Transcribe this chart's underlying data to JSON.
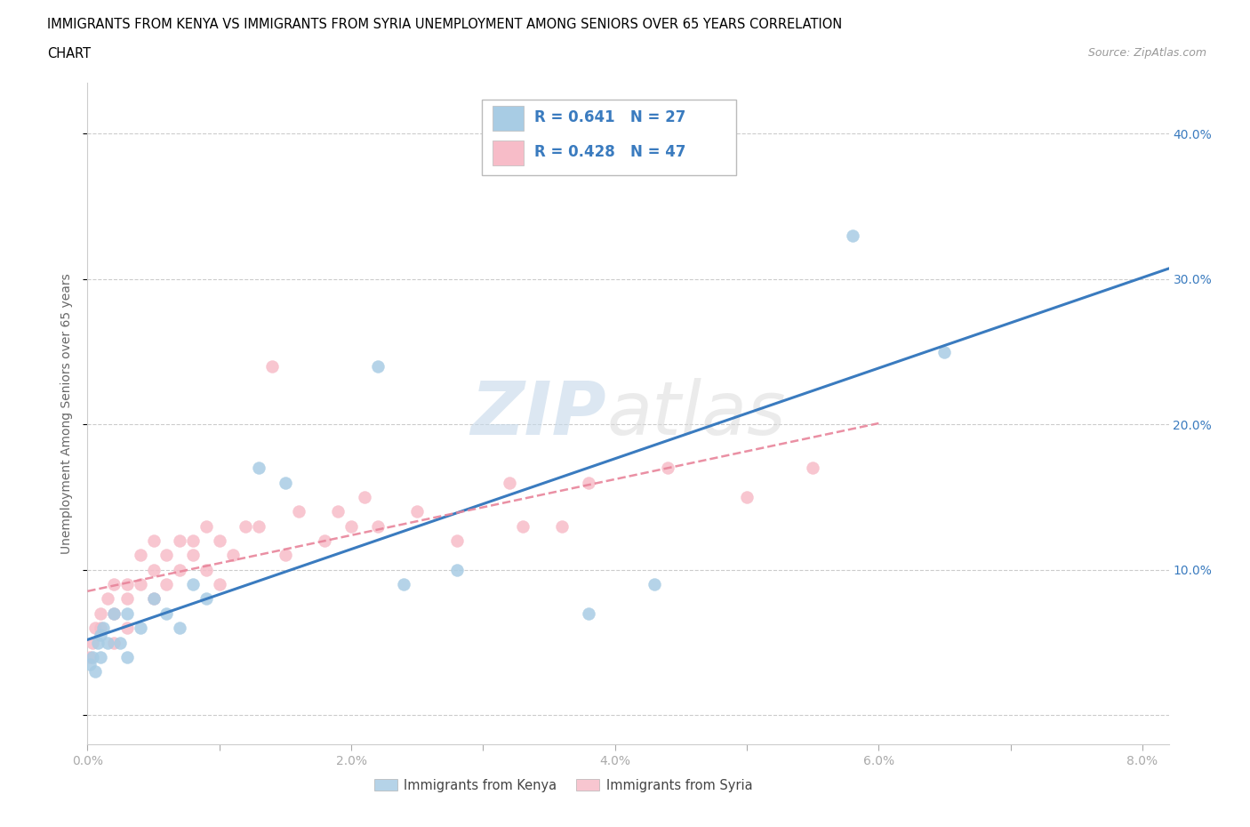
{
  "title_line1": "IMMIGRANTS FROM KENYA VS IMMIGRANTS FROM SYRIA UNEMPLOYMENT AMONG SENIORS OVER 65 YEARS CORRELATION",
  "title_line2": "CHART",
  "source_text": "Source: ZipAtlas.com",
  "ylabel": "Unemployment Among Seniors over 65 years",
  "legend_kenya": "Immigrants from Kenya",
  "legend_syria": "Immigrants from Syria",
  "kenya_R": 0.641,
  "kenya_N": 27,
  "syria_R": 0.428,
  "syria_N": 47,
  "kenya_scatter_color": "#a8cce4",
  "syria_scatter_color": "#f7bcc8",
  "kenya_line_color": "#3a7bbf",
  "syria_line_color": "#e8849a",
  "xlim": [
    0.0,
    0.082
  ],
  "ylim": [
    -0.02,
    0.435
  ],
  "yticks": [
    0.0,
    0.1,
    0.2,
    0.3,
    0.4
  ],
  "kenya_x": [
    0.0002,
    0.0004,
    0.0006,
    0.0008,
    0.001,
    0.001,
    0.0012,
    0.0015,
    0.002,
    0.0025,
    0.003,
    0.003,
    0.004,
    0.005,
    0.006,
    0.007,
    0.008,
    0.009,
    0.013,
    0.015,
    0.022,
    0.024,
    0.028,
    0.038,
    0.043,
    0.058,
    0.065
  ],
  "kenya_y": [
    0.035,
    0.04,
    0.03,
    0.05,
    0.04,
    0.055,
    0.06,
    0.05,
    0.07,
    0.05,
    0.04,
    0.07,
    0.06,
    0.08,
    0.07,
    0.06,
    0.09,
    0.08,
    0.17,
    0.16,
    0.24,
    0.09,
    0.1,
    0.07,
    0.09,
    0.33,
    0.25
  ],
  "syria_x": [
    0.0002,
    0.0004,
    0.0006,
    0.001,
    0.001,
    0.0015,
    0.002,
    0.002,
    0.002,
    0.003,
    0.003,
    0.003,
    0.004,
    0.004,
    0.005,
    0.005,
    0.005,
    0.006,
    0.006,
    0.007,
    0.007,
    0.008,
    0.008,
    0.009,
    0.009,
    0.01,
    0.01,
    0.011,
    0.012,
    0.013,
    0.014,
    0.015,
    0.016,
    0.018,
    0.019,
    0.02,
    0.021,
    0.022,
    0.025,
    0.028,
    0.032,
    0.033,
    0.036,
    0.038,
    0.044,
    0.05,
    0.055
  ],
  "syria_y": [
    0.04,
    0.05,
    0.06,
    0.06,
    0.07,
    0.08,
    0.05,
    0.07,
    0.09,
    0.08,
    0.09,
    0.06,
    0.09,
    0.11,
    0.08,
    0.1,
    0.12,
    0.09,
    0.11,
    0.1,
    0.12,
    0.11,
    0.12,
    0.1,
    0.13,
    0.09,
    0.12,
    0.11,
    0.13,
    0.13,
    0.24,
    0.11,
    0.14,
    0.12,
    0.14,
    0.13,
    0.15,
    0.13,
    0.14,
    0.12,
    0.16,
    0.13,
    0.13,
    0.16,
    0.17,
    0.15,
    0.17
  ],
  "info_text_color": "#3a7bbf",
  "axis_tick_color": "#3a7bbf",
  "ylabel_color": "#666666",
  "grid_color": "#cccccc",
  "bg_color": "#ffffff"
}
